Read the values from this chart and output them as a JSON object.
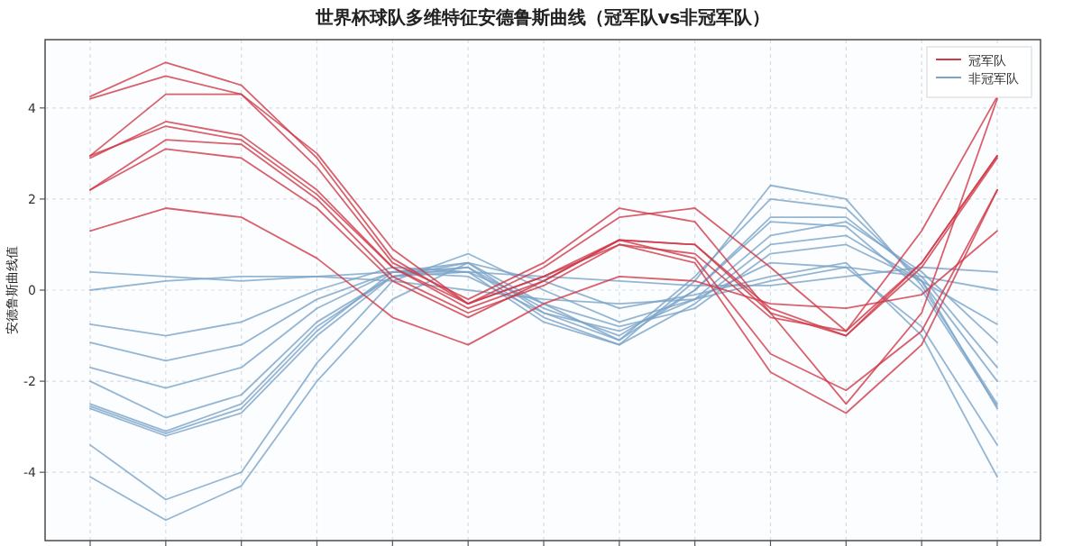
{
  "chart_data": {
    "type": "line",
    "title": "世界杯球队多维特征安德鲁斯曲线（冠军队vs非冠军队）",
    "ylabel": "安德鲁斯曲线值",
    "categories": [
      null,
      null,
      null,
      null,
      null,
      null,
      null,
      null,
      null,
      null,
      null,
      null,
      null
    ],
    "ylim": [
      -5.5,
      5.5
    ],
    "yticks": [
      -4,
      -2,
      0,
      2,
      4
    ],
    "grid": true,
    "legend": "top right",
    "line_style": "solid",
    "marker": "none",
    "series": [
      {
        "name": "非冠军队",
        "color": "#7ba4c8",
        "values": [
          0.4,
          0.3,
          0.2,
          0.3,
          0.4,
          0.4,
          0.3,
          0.2,
          0.1,
          0.1,
          0.3,
          0.5,
          0.4
        ]
      },
      {
        "color": "#7ba4c8",
        "values": [
          0.0,
          0.2,
          0.3,
          0.3,
          0.2,
          0.0,
          -0.2,
          -0.3,
          -0.2,
          0.2,
          0.5,
          0.3,
          0.0
        ]
      },
      {
        "color": "#7ba4c8",
        "values": [
          -0.75,
          -1.0,
          -0.7,
          0.0,
          0.5,
          0.4,
          -0.3,
          -0.8,
          -0.4,
          0.8,
          1.0,
          0.2,
          -0.75
        ]
      },
      {
        "color": "#7ba4c8",
        "values": [
          -1.15,
          -1.55,
          -1.2,
          -0.2,
          0.4,
          0.3,
          -0.5,
          -0.9,
          -0.2,
          1.2,
          1.5,
          0.4,
          -1.15
        ]
      },
      {
        "color": "#7ba4c8",
        "values": [
          -1.7,
          -2.15,
          -1.7,
          -0.4,
          0.4,
          0.5,
          -0.4,
          -1.0,
          0.0,
          1.6,
          1.6,
          0.3,
          -1.7
        ]
      },
      {
        "color": "#7ba4c8",
        "values": [
          -2.0,
          -2.8,
          -2.3,
          -0.7,
          0.3,
          0.6,
          -0.3,
          -1.1,
          0.3,
          2.0,
          1.8,
          0.2,
          -2.0
        ]
      },
      {
        "color": "#7ba4c8",
        "values": [
          -2.5,
          -3.1,
          -2.5,
          -0.8,
          0.3,
          0.5,
          -0.6,
          -1.2,
          0.2,
          2.3,
          2.0,
          0.1,
          -2.5
        ]
      },
      {
        "color": "#7ba4c8",
        "values": [
          -2.55,
          -3.15,
          -2.6,
          -0.9,
          0.4,
          0.6,
          -0.5,
          -1.1,
          0.0,
          1.5,
          1.4,
          0.0,
          -2.55
        ]
      },
      {
        "color": "#7ba4c8",
        "values": [
          -2.6,
          -3.2,
          -2.7,
          -1.0,
          0.3,
          0.4,
          -0.7,
          -1.2,
          -0.3,
          1.0,
          1.2,
          0.2,
          -2.6
        ]
      },
      {
        "color": "#7ba4c8",
        "values": [
          -3.4,
          -4.6,
          -4.0,
          -1.6,
          0.2,
          0.8,
          0.0,
          -0.7,
          -0.2,
          0.6,
          0.5,
          -0.8,
          -3.4
        ]
      },
      {
        "color": "#7ba4c8",
        "values": [
          -4.1,
          -5.05,
          -4.3,
          -2.0,
          -0.2,
          0.6,
          0.2,
          -0.4,
          -0.1,
          0.3,
          0.6,
          -1.0,
          -4.1
        ]
      },
      {
        "name": "冠军队",
        "color": "#d03a48",
        "values": [
          4.25,
          5.0,
          4.5,
          2.9,
          0.7,
          -0.3,
          0.5,
          1.6,
          1.8,
          0.5,
          -0.9,
          1.3,
          4.25
        ]
      },
      {
        "color": "#d03a48",
        "values": [
          4.2,
          4.7,
          4.3,
          2.7,
          0.6,
          -0.2,
          0.6,
          1.8,
          1.5,
          -0.5,
          -2.5,
          -0.5,
          4.2
        ]
      },
      {
        "color": "#d03a48",
        "values": [
          2.95,
          4.3,
          4.3,
          3.0,
          0.9,
          -0.3,
          0.3,
          1.1,
          1.0,
          -0.4,
          -1.0,
          0.6,
          2.95
        ]
      },
      {
        "color": "#d03a48",
        "values": [
          2.9,
          3.7,
          3.4,
          2.2,
          0.5,
          -0.4,
          0.2,
          1.1,
          1.0,
          -0.5,
          -1.0,
          0.5,
          2.9
        ]
      },
      {
        "color": "#d03a48",
        "values": [
          2.95,
          3.6,
          3.3,
          2.1,
          0.5,
          -0.3,
          0.3,
          1.0,
          0.8,
          -0.6,
          -0.9,
          0.6,
          2.95
        ]
      },
      {
        "color": "#d03a48",
        "values": [
          2.2,
          3.3,
          3.2,
          2.0,
          0.3,
          -0.5,
          0.1,
          1.0,
          0.6,
          -1.8,
          -2.7,
          -1.2,
          2.2
        ]
      },
      {
        "color": "#d03a48",
        "values": [
          2.2,
          3.1,
          2.9,
          1.8,
          0.2,
          -0.6,
          0.2,
          1.1,
          0.7,
          -1.4,
          -2.2,
          -0.9,
          2.2
        ]
      },
      {
        "color": "#d03a48",
        "values": [
          1.3,
          1.8,
          1.6,
          0.7,
          -0.6,
          -1.2,
          -0.3,
          0.3,
          0.2,
          -0.3,
          -0.4,
          -0.1,
          1.3
        ]
      }
    ]
  }
}
